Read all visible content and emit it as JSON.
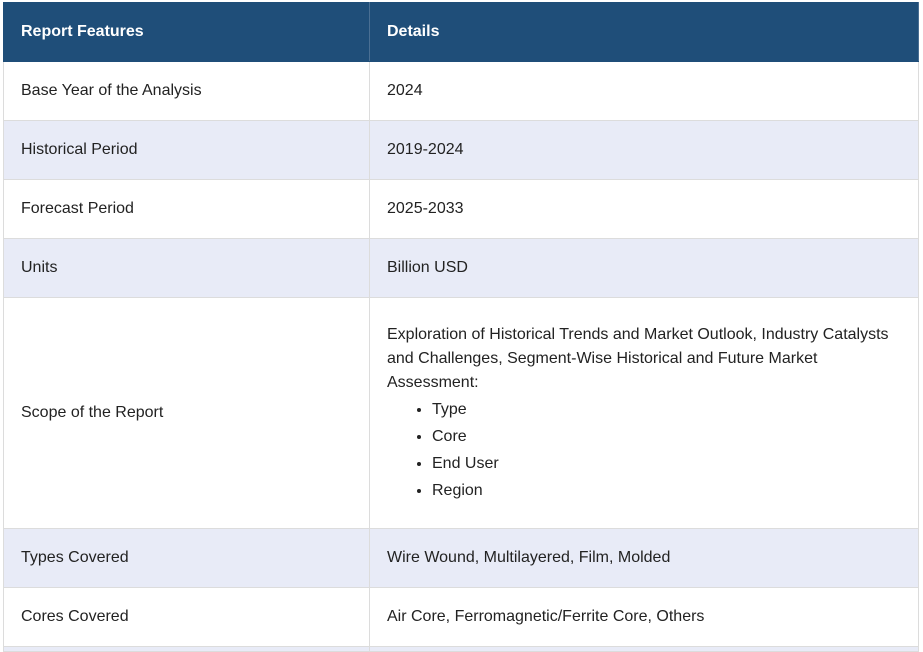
{
  "table": {
    "headers": [
      "Report Features",
      "Details"
    ],
    "rows": [
      {
        "feature": "Base Year of the Analysis",
        "detail": "2024"
      },
      {
        "feature": "Historical Period",
        "detail": "2019-2024"
      },
      {
        "feature": "Forecast Period",
        "detail": "2025-2033"
      },
      {
        "feature": "Units",
        "detail": "Billion USD"
      },
      {
        "feature": "Scope of the Report",
        "detail": "Exploration of Historical Trends and Market Outlook, Industry Catalysts and Challenges, Segment-Wise Historical and Future Market Assessment:",
        "bullets": [
          "Type",
          "Core",
          "End User",
          "Region"
        ]
      },
      {
        "feature": "Types Covered",
        "detail": "Wire Wound, Multilayered, Film, Molded"
      },
      {
        "feature": "Cores Covered",
        "detail": "Air Core, Ferromagnetic/Ferrite Core, Others"
      }
    ]
  },
  "colors": {
    "header_bg": "#1f4e79",
    "header_text": "#ffffff",
    "alt_row_bg": "#e8ebf7",
    "border": "#dcdcdc"
  }
}
